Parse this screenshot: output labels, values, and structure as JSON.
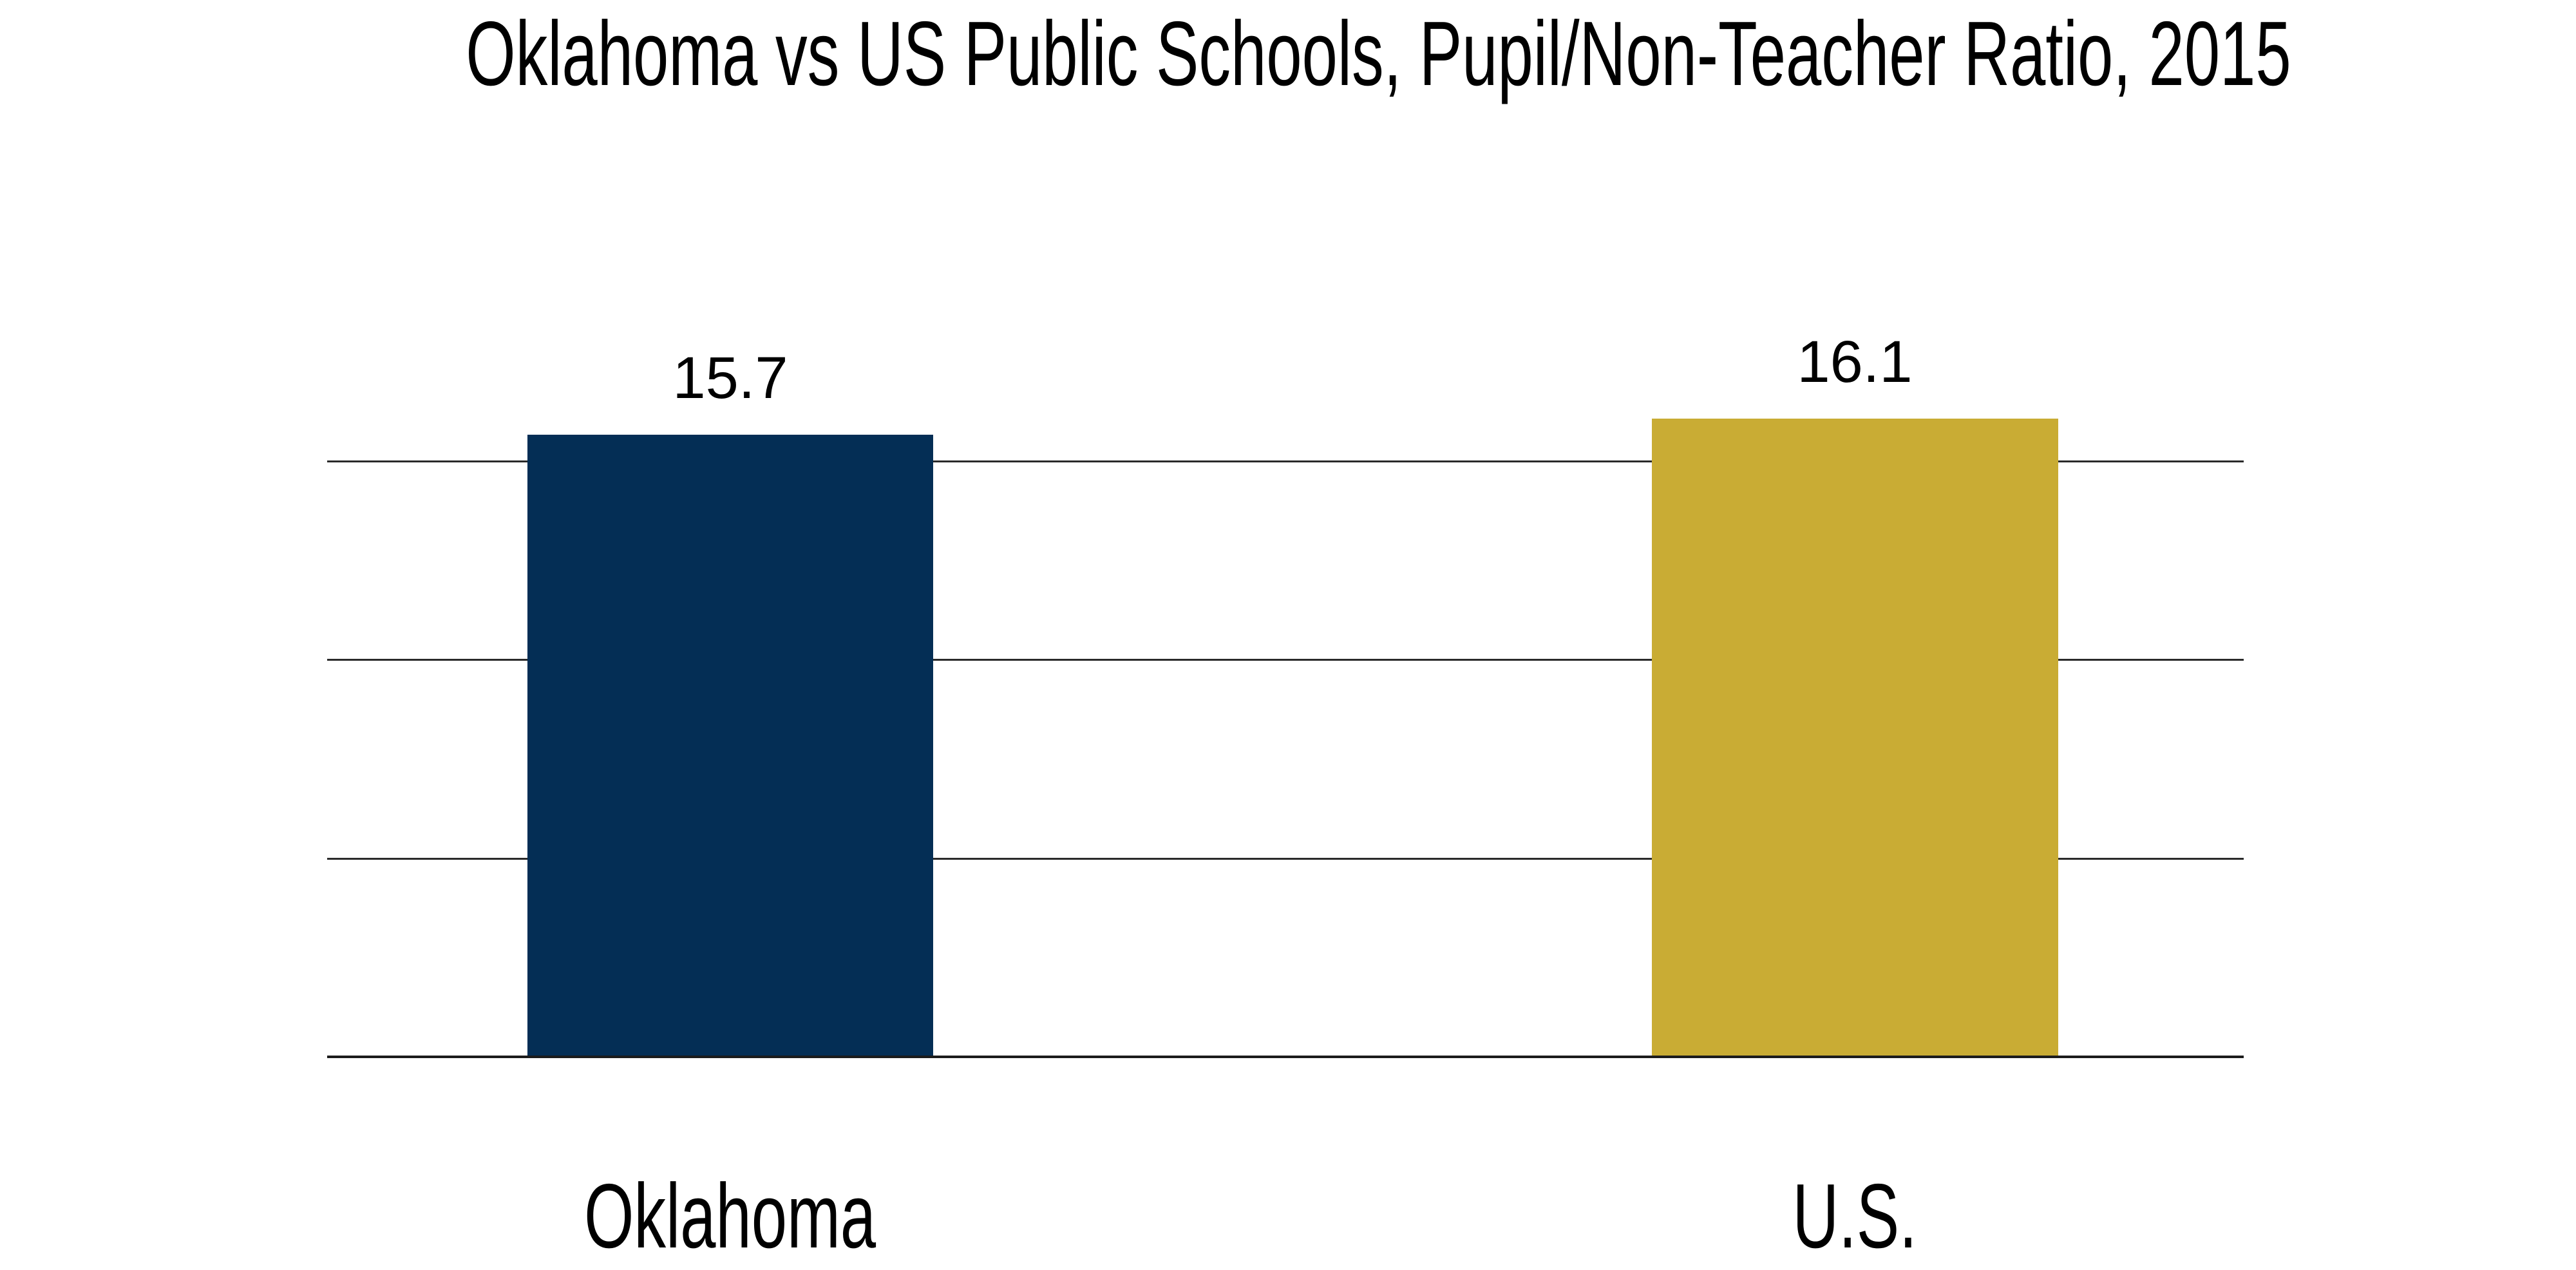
{
  "chart_data": {
    "type": "bar",
    "title": "Oklahoma vs US Public Schools, Pupil/Non-Teacher Ratio, 2015",
    "categories": [
      "Oklahoma",
      "U.S."
    ],
    "values": [
      15.7,
      16.1
    ],
    "data_labels": [
      "15.7",
      "16.1"
    ],
    "bar_colors": [
      "#042e55",
      "#c9ac34"
    ],
    "xlabel": "",
    "ylabel": "",
    "ylim": [
      0,
      16.5
    ],
    "gridline_values": [
      0,
      5,
      10,
      15
    ],
    "grid": true,
    "legend": "none",
    "background": "#ffffff",
    "gridline_color": "#2a2a2a",
    "text_color": "#000000"
  }
}
